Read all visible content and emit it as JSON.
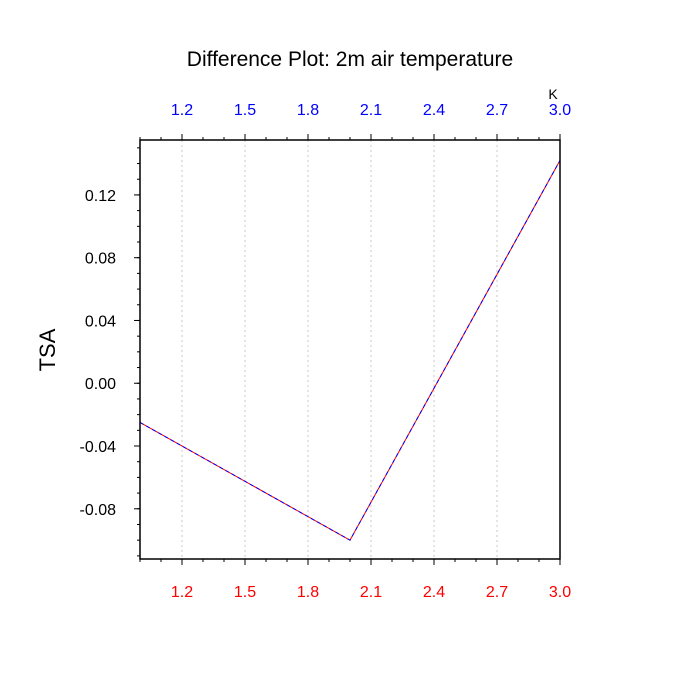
{
  "chart_data": {
    "type": "line",
    "title": "Difference Plot: 2m air temperature",
    "xlabel": "",
    "ylabel": "TSA",
    "units": "K",
    "xlim": [
      1.0,
      3.0
    ],
    "ylim": [
      -0.112,
      0.155
    ],
    "x_ticks": [
      "1.2",
      "1.5",
      "1.8",
      "2.1",
      "2.4",
      "2.7",
      "3.0"
    ],
    "x_tick_values": [
      1.2,
      1.5,
      1.8,
      2.1,
      2.4,
      2.7,
      3.0
    ],
    "y_ticks": [
      "0.12",
      "0.08",
      "0.04",
      "0.00",
      "-0.04",
      "-0.08"
    ],
    "y_tick_values": [
      0.12,
      0.08,
      0.04,
      0.0,
      -0.04,
      -0.08
    ],
    "grid": "vertical dotted",
    "colors": {
      "bottom_tick_labels": "#ff0000",
      "top_tick_labels": "#0000ff",
      "series_a": "#ff0000",
      "series_b": "#0000ff"
    },
    "series": [
      {
        "x": [
          1.0,
          2.0,
          3.0
        ],
        "values": [
          -0.025,
          -0.1,
          0.142
        ],
        "color": "#ff0000"
      },
      {
        "x": [
          1.0,
          2.0,
          3.0
        ],
        "values": [
          -0.025,
          -0.1,
          0.142
        ],
        "color": "#0000ff"
      }
    ]
  }
}
